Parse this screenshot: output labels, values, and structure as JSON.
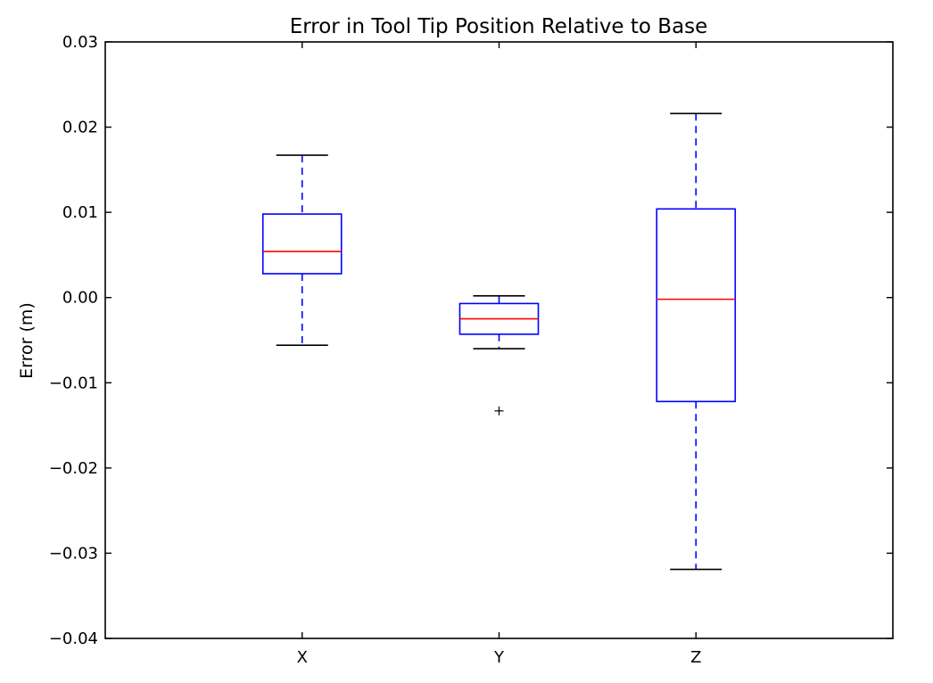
{
  "chart_data": {
    "type": "box",
    "title": "Error in Tool Tip Position Relative to Base",
    "ylabel": "Error (m)",
    "xlabel": "",
    "ylim": [
      -0.04,
      0.03
    ],
    "yticks": [
      0.03,
      0.02,
      0.01,
      0.0,
      -0.01,
      -0.02,
      -0.03,
      -0.04
    ],
    "ytick_labels": [
      "0.03",
      "0.02",
      "0.01",
      "0.00",
      "−0.01",
      "−0.02",
      "−0.03",
      "−0.04"
    ],
    "categories": [
      "X",
      "Y",
      "Z"
    ],
    "boxes": [
      {
        "name": "X",
        "whisker_low": -0.0056,
        "q1": 0.0028,
        "median": 0.0054,
        "q3": 0.0098,
        "whisker_high": 0.0167,
        "outliers": []
      },
      {
        "name": "Y",
        "whisker_low": -0.006,
        "q1": -0.0043,
        "median": -0.0025,
        "q3": -0.0007,
        "whisker_high": 0.0002,
        "outliers": [
          -0.0133
        ]
      },
      {
        "name": "Z",
        "whisker_low": -0.0319,
        "q1": -0.0122,
        "median": -0.0002,
        "q3": 0.0104,
        "whisker_high": 0.0216,
        "outliers": []
      }
    ],
    "colors": {
      "box": "#0000ff",
      "median": "#ff0000",
      "whisker": "#0000ff",
      "cap": "#000000",
      "outlier": "#000000",
      "axes": "#000000"
    },
    "grid": false
  }
}
